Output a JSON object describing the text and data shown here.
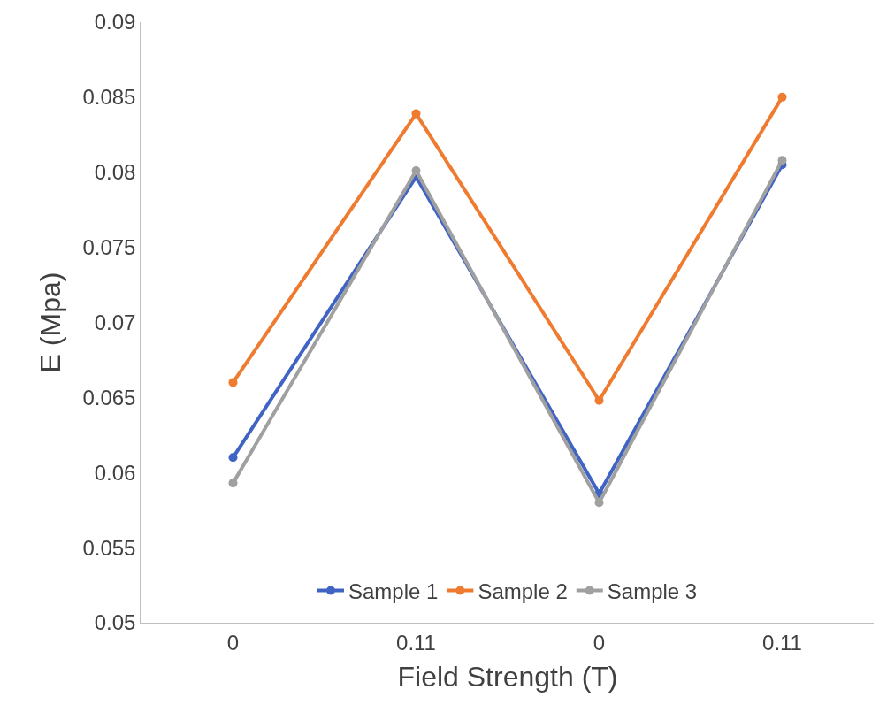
{
  "chart_data": {
    "type": "line",
    "xlabel": "Field Strength (T)",
    "ylabel": "E (Mpa)",
    "categories": [
      "0",
      "0.11",
      "0",
      "0.11"
    ],
    "series": [
      {
        "name": "Sample 1",
        "color": "#4064c4",
        "values": [
          0.061,
          0.0797,
          0.0586,
          0.0805
        ]
      },
      {
        "name": "Sample 2",
        "color": "#ee7b30",
        "values": [
          0.066,
          0.0839,
          0.0648,
          0.085
        ]
      },
      {
        "name": "Sample 3",
        "color": "#a0a0a0",
        "values": [
          0.0593,
          0.0801,
          0.058,
          0.0808
        ]
      }
    ],
    "ylim": [
      0.05,
      0.09
    ],
    "yticks": [
      0.05,
      0.055,
      0.06,
      0.065,
      0.07,
      0.075,
      0.08,
      0.085,
      0.09
    ],
    "legend": "bottom",
    "marker": "circle",
    "line_style": "solid"
  }
}
